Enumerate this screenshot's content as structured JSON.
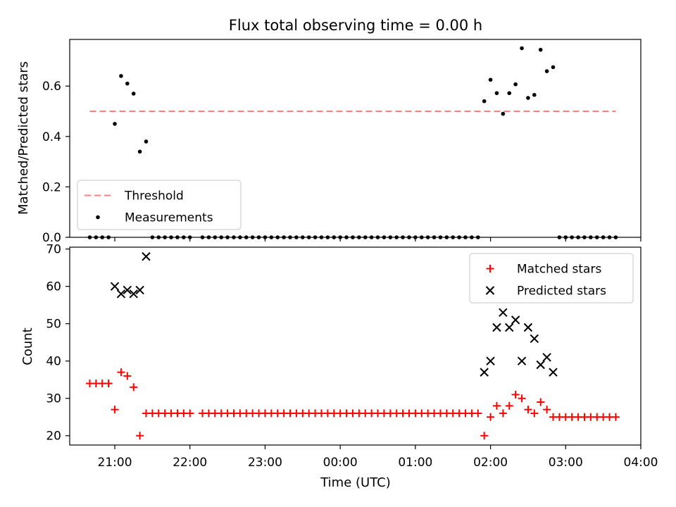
{
  "chart_data": [
    {
      "type": "scatter",
      "title": "Flux total observing time = 0.00 h",
      "xlabel": "",
      "ylabel": "Matched/Predicted stars",
      "xlim": [
        "20:24",
        "04:00"
      ],
      "ylim": [
        0,
        0.785
      ],
      "y_ticks": [
        0.0,
        0.2,
        0.4,
        0.6
      ],
      "x_ticks": [
        "21:00",
        "22:00",
        "23:00",
        "00:00",
        "01:00",
        "02:00",
        "03:00",
        "04:00"
      ],
      "show_x_tick_labels": false,
      "legend_position": "lower-left",
      "threshold": {
        "name": "Threshold",
        "value": 0.5,
        "x_range": [
          "20:40",
          "03:40"
        ],
        "color": "#ff7f7f",
        "style": "dashed"
      },
      "series": [
        {
          "name": "Measurements",
          "marker": "dot",
          "color": "#000000",
          "x": [
            "20:40",
            "20:45",
            "20:50",
            "20:55",
            "21:00",
            "21:05",
            "21:10",
            "21:15",
            "21:20",
            "21:25",
            "21:30",
            "21:35",
            "21:40",
            "21:45",
            "21:50",
            "21:55",
            "22:00",
            "22:10",
            "22:15",
            "22:20",
            "22:25",
            "22:30",
            "22:35",
            "22:40",
            "22:45",
            "22:50",
            "22:55",
            "23:00",
            "23:05",
            "23:10",
            "23:15",
            "23:20",
            "23:25",
            "23:30",
            "23:35",
            "23:40",
            "23:45",
            "23:50",
            "23:55",
            "00:00",
            "00:05",
            "00:10",
            "00:15",
            "00:20",
            "00:25",
            "00:30",
            "00:35",
            "00:40",
            "00:45",
            "00:50",
            "00:55",
            "01:00",
            "01:05",
            "01:10",
            "01:15",
            "01:20",
            "01:25",
            "01:30",
            "01:35",
            "01:40",
            "01:45",
            "01:50",
            "01:55",
            "02:00",
            "02:05",
            "02:10",
            "02:15",
            "02:20",
            "02:25",
            "02:30",
            "02:35",
            "02:40",
            "02:45",
            "02:50",
            "02:55",
            "03:00",
            "03:05",
            "03:10",
            "03:15",
            "03:20",
            "03:25",
            "03:30",
            "03:35",
            "03:40"
          ],
          "y": [
            0,
            0,
            0,
            0,
            0.45,
            0.64,
            0.61,
            0.57,
            0.34,
            0.38,
            0,
            0,
            0,
            0,
            0,
            0,
            0,
            0,
            0,
            0,
            0,
            0,
            0,
            0,
            0,
            0,
            0,
            0,
            0,
            0,
            0,
            0,
            0,
            0,
            0,
            0,
            0,
            0,
            0,
            0,
            0,
            0,
            0,
            0,
            0,
            0,
            0,
            0,
            0,
            0,
            0,
            0,
            0,
            0,
            0,
            0,
            0,
            0,
            0,
            0,
            0,
            0,
            0.54,
            0.625,
            0.572,
            0.49,
            0.572,
            0.607,
            0.75,
            0.553,
            0.565,
            0.744,
            0.659,
            0.675,
            0,
            0,
            0,
            0,
            0,
            0,
            0,
            0,
            0,
            0
          ]
        }
      ]
    },
    {
      "type": "scatter",
      "title": "",
      "xlabel": "Time (UTC)",
      "ylabel": "Count",
      "xlim": [
        "20:24",
        "04:00"
      ],
      "ylim": [
        17.5,
        70.5
      ],
      "y_ticks": [
        20,
        30,
        40,
        50,
        60,
        70
      ],
      "x_ticks": [
        "21:00",
        "22:00",
        "23:00",
        "00:00",
        "01:00",
        "02:00",
        "03:00",
        "04:00"
      ],
      "show_x_tick_labels": true,
      "legend_position": "upper-right",
      "series": [
        {
          "name": "Matched stars",
          "marker": "plus",
          "color": "#ff0000",
          "x": [
            "20:40",
            "20:45",
            "20:50",
            "20:55",
            "21:00",
            "21:05",
            "21:10",
            "21:15",
            "21:20",
            "21:25",
            "21:30",
            "21:35",
            "21:40",
            "21:45",
            "21:50",
            "21:55",
            "22:00",
            "22:10",
            "22:15",
            "22:20",
            "22:25",
            "22:30",
            "22:35",
            "22:40",
            "22:45",
            "22:50",
            "22:55",
            "23:00",
            "23:05",
            "23:10",
            "23:15",
            "23:20",
            "23:25",
            "23:30",
            "23:35",
            "23:40",
            "23:45",
            "23:50",
            "23:55",
            "00:00",
            "00:05",
            "00:10",
            "00:15",
            "00:20",
            "00:25",
            "00:30",
            "00:35",
            "00:40",
            "00:45",
            "00:50",
            "00:55",
            "01:00",
            "01:05",
            "01:10",
            "01:15",
            "01:20",
            "01:25",
            "01:30",
            "01:35",
            "01:40",
            "01:45",
            "01:50",
            "01:55",
            "02:00",
            "02:05",
            "02:10",
            "02:15",
            "02:20",
            "02:25",
            "02:30",
            "02:35",
            "02:40",
            "02:45",
            "02:50",
            "02:55",
            "03:00",
            "03:05",
            "03:10",
            "03:15",
            "03:20",
            "03:25",
            "03:30",
            "03:35",
            "03:40"
          ],
          "y": [
            34,
            34,
            34,
            34,
            27,
            37,
            36,
            33,
            20,
            26,
            26,
            26,
            26,
            26,
            26,
            26,
            26,
            26,
            26,
            26,
            26,
            26,
            26,
            26,
            26,
            26,
            26,
            26,
            26,
            26,
            26,
            26,
            26,
            26,
            26,
            26,
            26,
            26,
            26,
            26,
            26,
            26,
            26,
            26,
            26,
            26,
            26,
            26,
            26,
            26,
            26,
            26,
            26,
            26,
            26,
            26,
            26,
            26,
            26,
            26,
            26,
            26,
            20,
            25,
            28,
            26,
            28,
            31,
            30,
            27,
            26,
            29,
            27,
            25,
            25,
            25,
            25,
            25,
            25,
            25,
            25,
            25,
            25,
            25
          ]
        },
        {
          "name": "Predicted stars",
          "marker": "x",
          "color": "#000000",
          "x": [
            "21:00",
            "21:05",
            "21:10",
            "21:15",
            "21:20",
            "21:25",
            "01:55",
            "02:00",
            "02:05",
            "02:10",
            "02:15",
            "02:20",
            "02:25",
            "02:30",
            "02:35",
            "02:40",
            "02:45",
            "02:50"
          ],
          "y": [
            60,
            58,
            59,
            58,
            59,
            68,
            37,
            40,
            49,
            53,
            49,
            51,
            40,
            49,
            46,
            39,
            41,
            37
          ]
        }
      ]
    }
  ]
}
